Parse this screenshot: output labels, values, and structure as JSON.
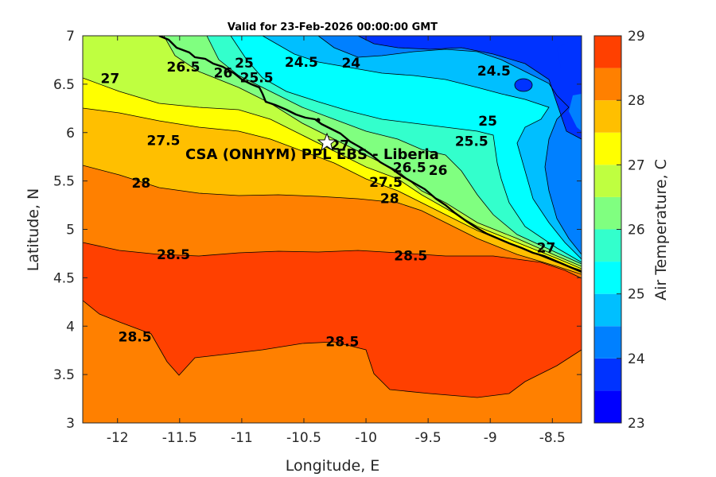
{
  "title": "Valid for 23-Feb-2026 00:00:00 GMT",
  "site_label": "CSA (ONHYM) PPL EBS - Liberia",
  "xlabel": "Longitude, E",
  "ylabel": "Latitude, N",
  "colorbar_label": "Air Temperature, C",
  "x_ticks": [
    "-12",
    "-11.5",
    "-11",
    "-10.5",
    "-10",
    "-9.5",
    "-9",
    "-8.5"
  ],
  "y_ticks": [
    "7",
    "6.5",
    "6",
    "5.5",
    "5",
    "4.5",
    "4",
    "3.5",
    "3"
  ],
  "colorbar": {
    "min": 23,
    "max": 29,
    "step": 0.5,
    "tick_labels": [
      "29",
      "28",
      "27",
      "26",
      "25",
      "24",
      "23"
    ],
    "colors": [
      "#0000ff",
      "#0033ff",
      "#0080ff",
      "#00bfff",
      "#00ffff",
      "#33ffcc",
      "#80ff80",
      "#bfff40",
      "#ffff00",
      "#ffbf00",
      "#ff8000",
      "#ff4000"
    ]
  },
  "contour_labels": [
    {
      "text": "24.5",
      "lon": -10.52,
      "lat": 6.73
    },
    {
      "text": "24",
      "lon": -10.12,
      "lat": 6.72
    },
    {
      "text": "24.5",
      "lon": -8.97,
      "lat": 6.64
    },
    {
      "text": "25",
      "lon": -10.98,
      "lat": 6.72
    },
    {
      "text": "25.5",
      "lon": -10.88,
      "lat": 6.57
    },
    {
      "text": "26.5",
      "lon": -11.47,
      "lat": 6.68
    },
    {
      "text": "26",
      "lon": -11.15,
      "lat": 6.62
    },
    {
      "text": "27",
      "lon": -12.06,
      "lat": 6.56
    },
    {
      "text": "25",
      "lon": -9.02,
      "lat": 6.12
    },
    {
      "text": "25.5",
      "lon": -9.15,
      "lat": 5.91
    },
    {
      "text": "27.5",
      "lon": -11.63,
      "lat": 5.92
    },
    {
      "text": "27",
      "lon": -10.21,
      "lat": 5.87
    },
    {
      "text": "26.5",
      "lon": -9.65,
      "lat": 5.64
    },
    {
      "text": "26",
      "lon": -9.42,
      "lat": 5.61
    },
    {
      "text": "27.5",
      "lon": -9.84,
      "lat": 5.49
    },
    {
      "text": "28",
      "lon": -11.81,
      "lat": 5.48
    },
    {
      "text": "28",
      "lon": -9.81,
      "lat": 5.32
    },
    {
      "text": "27",
      "lon": -8.55,
      "lat": 4.81
    },
    {
      "text": "28.5",
      "lon": -11.55,
      "lat": 4.74
    },
    {
      "text": "28.5",
      "lon": -9.64,
      "lat": 4.73
    },
    {
      "text": "28.5",
      "lon": -11.86,
      "lat": 3.89
    },
    {
      "text": "28.5",
      "lon": -10.19,
      "lat": 3.84
    }
  ]
}
